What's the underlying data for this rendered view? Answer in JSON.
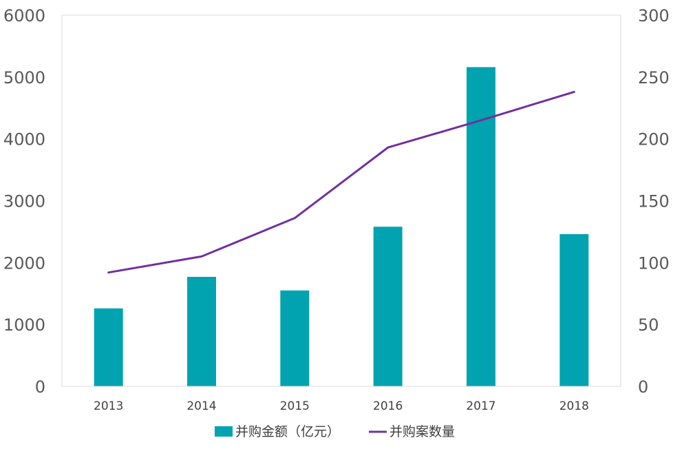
{
  "chart_data": {
    "type": "bar+line",
    "title": "",
    "categories": [
      "2013",
      "2014",
      "2015",
      "2016",
      "2017",
      "2018"
    ],
    "series": [
      {
        "name": "并购金额（亿元）",
        "type": "bar",
        "axis": "left",
        "color": "#00A3AF",
        "values": [
          1260,
          1770,
          1550,
          2580,
          5160,
          2460
        ]
      },
      {
        "name": "并购案数量",
        "type": "line",
        "axis": "right",
        "color": "#7030A0",
        "values": [
          92,
          105,
          136,
          193,
          215,
          238
        ]
      }
    ],
    "y_left": {
      "min": 0,
      "max": 6000,
      "ticks": [
        "0",
        "1000",
        "2000",
        "3000",
        "4000",
        "5000",
        "6000"
      ]
    },
    "y_right": {
      "min": 0,
      "max": 300,
      "ticks": [
        "0",
        "50",
        "100",
        "150",
        "200",
        "250",
        "300"
      ]
    },
    "grid": false,
    "legend": "bottom"
  }
}
